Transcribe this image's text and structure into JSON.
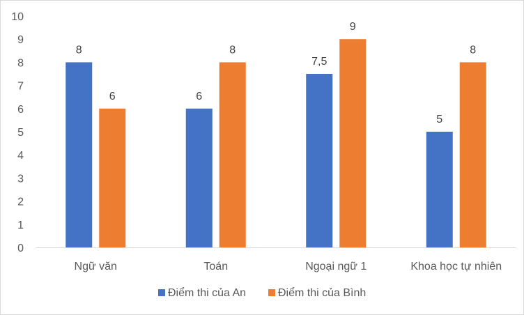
{
  "chart_data": {
    "type": "bar",
    "title": "",
    "xlabel": "",
    "ylabel": "",
    "categories": [
      "Ngữ văn",
      "Toán",
      "Ngoại ngữ 1",
      "Khoa học tự nhiên"
    ],
    "series": [
      {
        "name": "Điểm thi của An",
        "color": "#4472c4",
        "values": [
          8,
          6,
          7.5,
          5
        ],
        "labels": [
          "8",
          "6",
          "7,5",
          "5"
        ]
      },
      {
        "name": "Điểm thi của Bình",
        "color": "#ed7d31",
        "values": [
          6,
          8,
          9,
          8
        ],
        "labels": [
          "6",
          "8",
          "9",
          "8"
        ]
      }
    ],
    "ylim": [
      0,
      10
    ],
    "yticks": [
      "0",
      "1",
      "2",
      "3",
      "4",
      "5",
      "6",
      "7",
      "8",
      "9",
      "10"
    ],
    "grid": false,
    "legend": "bottom"
  }
}
